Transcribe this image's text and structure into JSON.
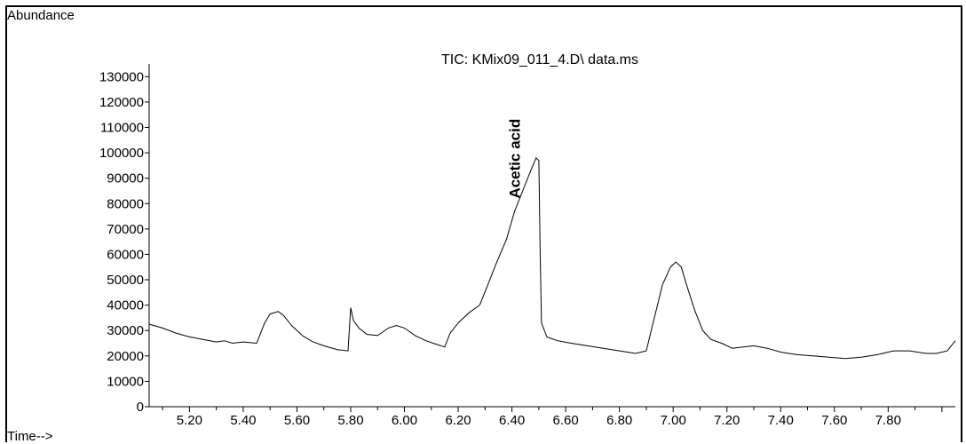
{
  "chart_data": {
    "type": "line",
    "title": "TIC: KMix09_011_4.D\\ data.ms",
    "ylabel": "Abundance",
    "xlabel": "Time-->",
    "xlim": [
      5.05,
      8.05
    ],
    "ylim": [
      0,
      135000
    ],
    "y_ticks": [
      0,
      10000,
      20000,
      30000,
      40000,
      50000,
      60000,
      70000,
      80000,
      90000,
      100000,
      110000,
      120000,
      130000
    ],
    "x_ticks": [
      "5.20",
      "5.40",
      "5.60",
      "5.80",
      "6.00",
      "6.20",
      "6.40",
      "6.60",
      "6.80",
      "7.00",
      "7.20",
      "7.40",
      "7.60",
      "7.80"
    ],
    "annotations": [
      {
        "text": "Acetic acid",
        "x": 6.43,
        "y": 82000
      }
    ],
    "series": [
      {
        "x": [
          5.05,
          5.1,
          5.15,
          5.2,
          5.25,
          5.3,
          5.33,
          5.36,
          5.4,
          5.45,
          5.48,
          5.5,
          5.53,
          5.55,
          5.58,
          5.62,
          5.66,
          5.7,
          5.75,
          5.79,
          5.8,
          5.81,
          5.83,
          5.86,
          5.9,
          5.94,
          5.97,
          6.0,
          6.04,
          6.08,
          6.12,
          6.15,
          6.17,
          6.2,
          6.24,
          6.28,
          6.31,
          6.34,
          6.38,
          6.41,
          6.44,
          6.47,
          6.49,
          6.5,
          6.505,
          6.51,
          6.53,
          6.57,
          6.62,
          6.68,
          6.74,
          6.8,
          6.86,
          6.9,
          6.93,
          6.96,
          6.99,
          7.01,
          7.03,
          7.05,
          7.08,
          7.11,
          7.14,
          7.18,
          7.22,
          7.26,
          7.3,
          7.35,
          7.4,
          7.46,
          7.52,
          7.58,
          7.64,
          7.7,
          7.76,
          7.82,
          7.88,
          7.94,
          7.98,
          8.02,
          8.05
        ],
        "y": [
          32500,
          31000,
          29000,
          27500,
          26500,
          25500,
          26000,
          25000,
          25500,
          25000,
          33000,
          36500,
          37500,
          36000,
          32000,
          28000,
          25500,
          24000,
          22500,
          22000,
          39000,
          34000,
          31000,
          28500,
          28000,
          31000,
          32000,
          31000,
          28000,
          26000,
          24500,
          23500,
          29000,
          33000,
          37000,
          40000,
          48000,
          56000,
          66000,
          77000,
          85000,
          93000,
          98000,
          97000,
          60000,
          33000,
          27500,
          26000,
          25000,
          24000,
          23000,
          22000,
          21000,
          22000,
          35000,
          48000,
          55000,
          57000,
          55000,
          48000,
          38000,
          30000,
          26500,
          25000,
          23000,
          23500,
          24000,
          23000,
          21500,
          20500,
          20000,
          19500,
          19000,
          19500,
          20500,
          22000,
          22000,
          21000,
          21000,
          22000,
          26000
        ]
      }
    ]
  }
}
